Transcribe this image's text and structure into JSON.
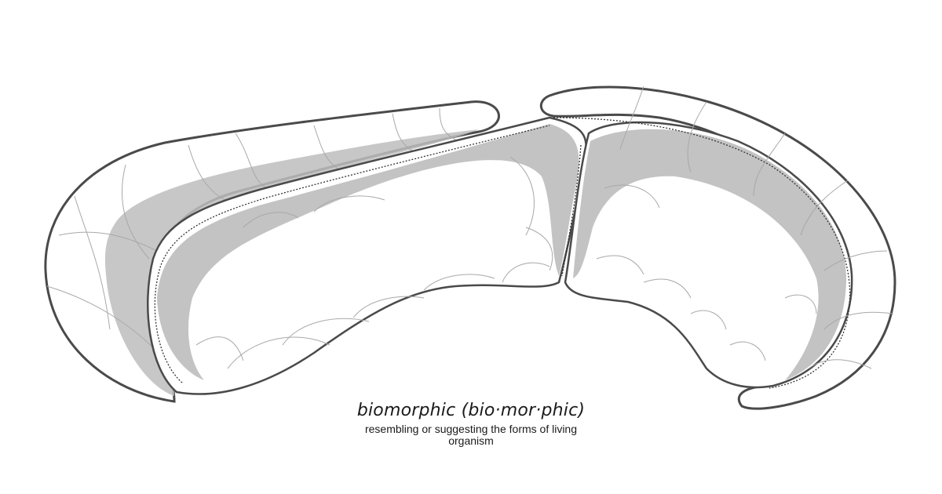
{
  "caption": {
    "title": "biomorphic (bio·mor·phic)",
    "definition": "resembling or suggesting the forms of living organism"
  },
  "colors": {
    "background": "#ffffff",
    "shell_fill": "#ffffff",
    "outline": "#4a4a4a",
    "shading": "#bdbdbd",
    "cell_lines": "#a8a8a8",
    "dotted_line": "#333333"
  }
}
